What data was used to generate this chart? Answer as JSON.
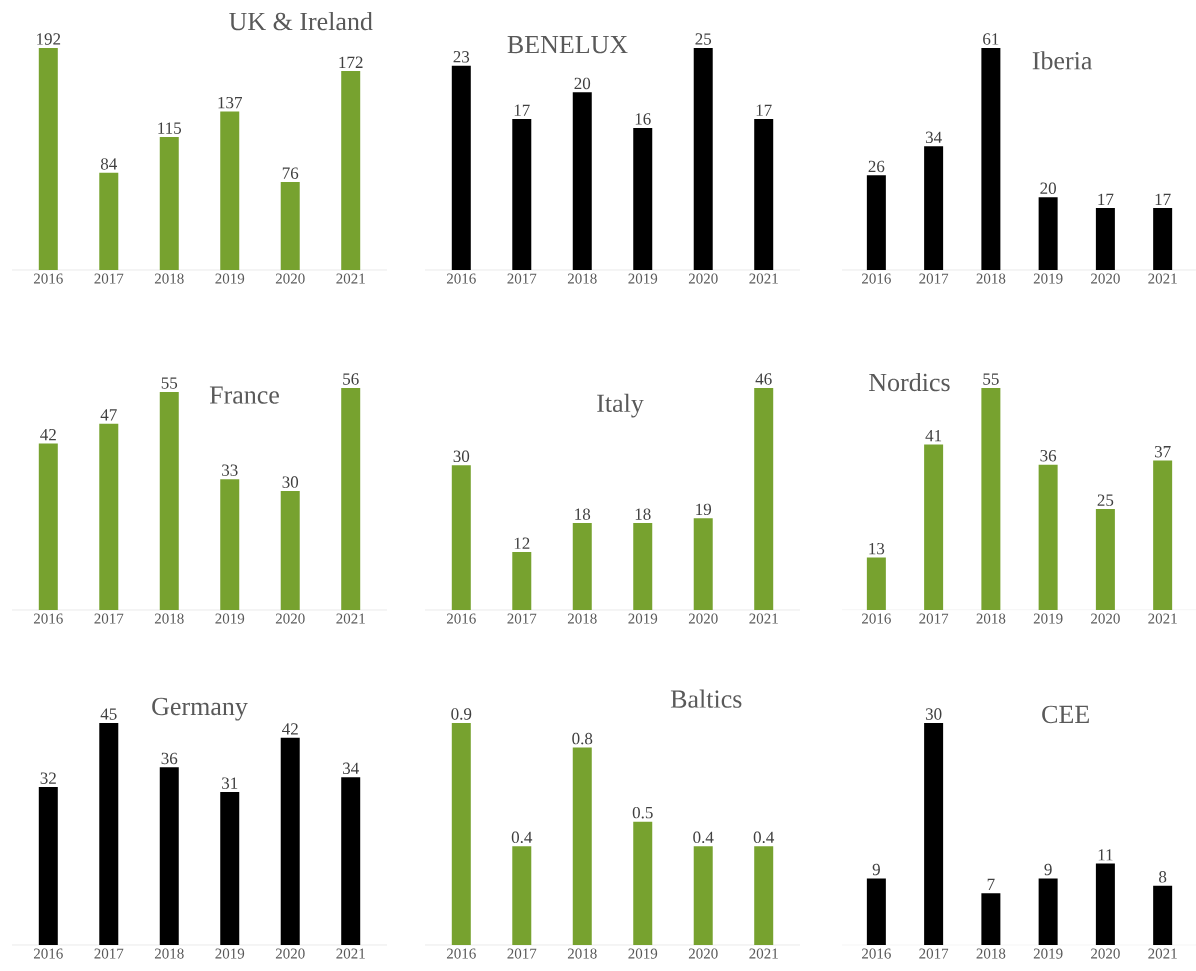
{
  "chart_data": [
    {
      "type": "bar",
      "title": "UK & Ireland",
      "categories": [
        "2016",
        "2017",
        "2018",
        "2019",
        "2020",
        "2021"
      ],
      "values": [
        192,
        84,
        115,
        137,
        76,
        172
      ],
      "color": "#77a22f",
      "data_labels": true
    },
    {
      "type": "bar",
      "title": "BENELUX",
      "categories": [
        "2016",
        "2017",
        "2018",
        "2019",
        "2020",
        "2021"
      ],
      "values": [
        23,
        17,
        20,
        16,
        25,
        17
      ],
      "color": "#000000",
      "data_labels": true
    },
    {
      "type": "bar",
      "title": "Iberia",
      "categories": [
        "2016",
        "2017",
        "2018",
        "2019",
        "2020",
        "2021"
      ],
      "values": [
        26,
        34,
        61,
        20,
        17,
        17
      ],
      "color": "#000000",
      "data_labels": true
    },
    {
      "type": "bar",
      "title": "France",
      "categories": [
        "2016",
        "2017",
        "2018",
        "2019",
        "2020",
        "2021"
      ],
      "values": [
        42,
        47,
        55,
        33,
        30,
        56
      ],
      "color": "#77a22f",
      "data_labels": true
    },
    {
      "type": "bar",
      "title": "Italy",
      "categories": [
        "2016",
        "2017",
        "2018",
        "2019",
        "2020",
        "2021"
      ],
      "values": [
        30,
        12,
        18,
        18,
        19,
        46
      ],
      "color": "#77a22f",
      "data_labels": true
    },
    {
      "type": "bar",
      "title": "Nordics",
      "categories": [
        "2016",
        "2017",
        "2018",
        "2019",
        "2020",
        "2021"
      ],
      "values": [
        13,
        41,
        55,
        36,
        25,
        37
      ],
      "color": "#77a22f",
      "data_labels": true
    },
    {
      "type": "bar",
      "title": "Germany",
      "categories": [
        "2016",
        "2017",
        "2018",
        "2019",
        "2020",
        "2021"
      ],
      "values": [
        32,
        45,
        36,
        31,
        42,
        34
      ],
      "color": "#000000",
      "data_labels": true
    },
    {
      "type": "bar",
      "title": "Baltics",
      "categories": [
        "2016",
        "2017",
        "2018",
        "2019",
        "2020",
        "2021"
      ],
      "values": [
        0.9,
        0.4,
        0.8,
        0.5,
        0.4,
        0.4
      ],
      "color": "#77a22f",
      "data_labels": true
    },
    {
      "type": "bar",
      "title": "CEE",
      "categories": [
        "2016",
        "2017",
        "2018",
        "2019",
        "2020",
        "2021"
      ],
      "values": [
        9,
        30,
        7,
        9,
        11,
        8
      ],
      "color": "#000000",
      "data_labels": true
    }
  ]
}
